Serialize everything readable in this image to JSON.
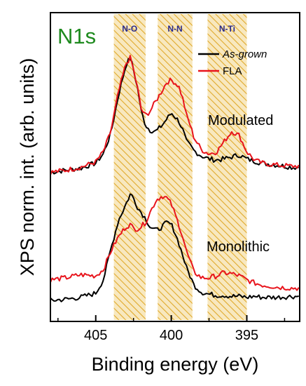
{
  "chart_data": {
    "type": "line",
    "title": "N1s",
    "xlabel": "Binding energy (eV)",
    "ylabel": "XPS norm. int. (arb. units)",
    "xlim": [
      408,
      391.5
    ],
    "x_reversed": true,
    "xticks": [
      405,
      400,
      395
    ],
    "y_tick_labels_shown": false,
    "grid": false,
    "legend_placement": "top-right",
    "colors": {
      "as_grown": "#000000",
      "fla": "#e8141c",
      "band_fill": "#f8e8bf",
      "band_hatch": "#e0aa2c",
      "title": "#1e8a1e",
      "band_text": "#2a2a8a"
    },
    "bands": [
      {
        "label": "N-O",
        "from": 403.8,
        "to": 401.7
      },
      {
        "label": "N-N",
        "from": 400.9,
        "to": 398.6
      },
      {
        "label": "N-Ti",
        "from": 397.6,
        "to": 395.0
      }
    ],
    "traces": [
      {
        "label": "Modulated",
        "offset": 1.25
      },
      {
        "label": "Monolithic",
        "offset": 0
      }
    ],
    "series": [
      {
        "name": "As-grown",
        "trace": "Modulated",
        "color": "#000000",
        "x": [
          408.0,
          407.0,
          406.0,
          405.0,
          404.5,
          404.0,
          403.5,
          403.0,
          402.7,
          402.5,
          402.2,
          402.0,
          401.7,
          401.4,
          401.0,
          400.6,
          400.3,
          400.0,
          399.8,
          399.5,
          399.2,
          399.0,
          398.7,
          398.5,
          398.0,
          397.5,
          397.0,
          396.5,
          396.0,
          395.5,
          395.0,
          394.5,
          394.0,
          393.0,
          392.0,
          391.5
        ],
        "y": [
          0.0,
          0.02,
          0.04,
          0.09,
          0.18,
          0.38,
          0.75,
          1.05,
          1.12,
          1.0,
          0.8,
          0.6,
          0.46,
          0.41,
          0.4,
          0.46,
          0.52,
          0.58,
          0.55,
          0.5,
          0.4,
          0.3,
          0.25,
          0.21,
          0.16,
          0.13,
          0.12,
          0.13,
          0.15,
          0.17,
          0.13,
          0.11,
          0.09,
          0.07,
          0.05,
          0.05
        ]
      },
      {
        "name": "FLA",
        "trace": "Modulated",
        "color": "#e8141c",
        "x": [
          408.0,
          407.0,
          406.0,
          405.0,
          404.5,
          404.0,
          403.5,
          403.0,
          402.7,
          402.5,
          402.2,
          402.0,
          401.7,
          401.4,
          401.0,
          400.6,
          400.3,
          400.0,
          399.8,
          399.5,
          399.2,
          399.0,
          398.7,
          398.5,
          398.0,
          397.5,
          397.0,
          396.5,
          396.0,
          395.5,
          395.0,
          394.5,
          394.0,
          393.0,
          392.0,
          391.5
        ],
        "y": [
          0.0,
          0.02,
          0.05,
          0.1,
          0.2,
          0.4,
          0.78,
          1.06,
          1.12,
          1.0,
          0.8,
          0.62,
          0.55,
          0.6,
          0.7,
          0.8,
          0.88,
          0.9,
          0.88,
          0.84,
          0.7,
          0.56,
          0.44,
          0.34,
          0.22,
          0.18,
          0.2,
          0.3,
          0.4,
          0.36,
          0.2,
          0.12,
          0.09,
          0.07,
          0.06,
          0.06
        ]
      },
      {
        "name": "As-grown",
        "trace": "Monolithic",
        "color": "#000000",
        "x": [
          408.0,
          407.0,
          406.0,
          405.0,
          404.5,
          404.0,
          403.5,
          403.0,
          402.7,
          402.5,
          402.2,
          402.0,
          401.7,
          401.4,
          401.0,
          400.6,
          400.3,
          400.0,
          399.8,
          399.5,
          399.2,
          399.0,
          398.7,
          398.5,
          398.0,
          397.5,
          397.0,
          396.5,
          396.0,
          395.5,
          395.0,
          394.5,
          394.0,
          393.0,
          392.0,
          391.5
        ],
        "y": [
          0.0,
          0.01,
          0.03,
          0.07,
          0.2,
          0.5,
          0.78,
          0.94,
          1.04,
          1.0,
          0.9,
          0.86,
          0.8,
          0.72,
          0.68,
          0.72,
          0.76,
          0.74,
          0.68,
          0.56,
          0.42,
          0.32,
          0.22,
          0.15,
          0.08,
          0.06,
          0.05,
          0.05,
          0.04,
          0.04,
          0.03,
          0.04,
          0.03,
          0.03,
          0.04,
          0.04
        ]
      },
      {
        "name": "FLA",
        "trace": "Monolithic",
        "color": "#e8141c",
        "x": [
          408.0,
          407.0,
          406.0,
          405.0,
          404.5,
          404.0,
          403.5,
          403.0,
          402.7,
          402.5,
          402.2,
          402.0,
          401.7,
          401.4,
          401.0,
          400.6,
          400.3,
          400.0,
          399.8,
          399.5,
          399.2,
          399.0,
          398.7,
          398.5,
          398.0,
          397.5,
          397.0,
          396.5,
          396.0,
          395.5,
          395.0,
          394.5,
          394.0,
          393.0,
          392.0,
          391.5
        ],
        "y": [
          0.2,
          0.22,
          0.25,
          0.24,
          0.3,
          0.48,
          0.62,
          0.72,
          0.74,
          0.7,
          0.7,
          0.72,
          0.76,
          0.86,
          0.98,
          1.02,
          1.0,
          0.94,
          0.86,
          0.74,
          0.6,
          0.48,
          0.36,
          0.28,
          0.22,
          0.22,
          0.24,
          0.27,
          0.26,
          0.24,
          0.2,
          0.17,
          0.15,
          0.13,
          0.12,
          0.12
        ]
      }
    ]
  }
}
